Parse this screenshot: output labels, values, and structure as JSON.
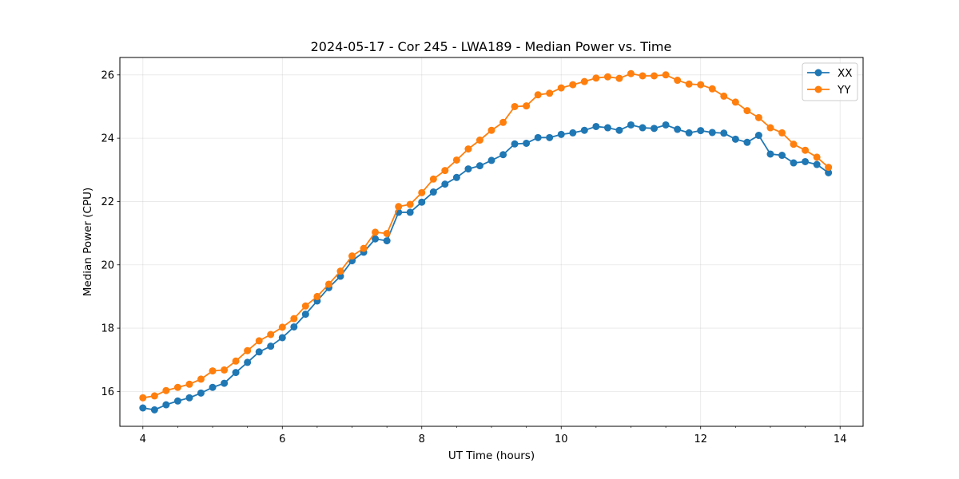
{
  "chart_data": {
    "type": "line",
    "title": "2024-05-17 - Cor 245 - LWA189 - Median Power vs. Time",
    "xlabel": "UT Time (hours)",
    "ylabel": "Median Power (CPU)",
    "xlim": [
      3.67,
      14.33
    ],
    "ylim": [
      14.9,
      26.55
    ],
    "xticks": [
      4,
      6,
      8,
      10,
      12,
      14
    ],
    "yticks": [
      16,
      18,
      20,
      22,
      24,
      26
    ],
    "x_minor_step": 0.5,
    "grid": true,
    "legend_position": "top-right",
    "x": [
      4.0,
      4.167,
      4.333,
      4.5,
      4.667,
      4.833,
      5.0,
      5.167,
      5.333,
      5.5,
      5.667,
      5.833,
      6.0,
      6.167,
      6.333,
      6.5,
      6.667,
      6.833,
      7.0,
      7.167,
      7.333,
      7.5,
      7.667,
      7.833,
      8.0,
      8.167,
      8.333,
      8.5,
      8.667,
      8.833,
      9.0,
      9.167,
      9.333,
      9.5,
      9.667,
      9.833,
      10.0,
      10.167,
      10.333,
      10.5,
      10.667,
      10.833,
      11.0,
      11.167,
      11.333,
      11.5,
      11.667,
      11.833,
      12.0,
      12.167,
      12.333,
      12.5,
      12.667,
      12.833,
      13.0,
      13.167,
      13.333,
      13.5,
      13.667,
      13.833
    ],
    "series": [
      {
        "name": "XX",
        "color": "#1f77b4",
        "values": [
          15.48,
          15.42,
          15.58,
          15.7,
          15.8,
          15.95,
          16.13,
          16.26,
          16.6,
          16.92,
          17.25,
          17.43,
          17.7,
          18.04,
          18.44,
          18.86,
          19.28,
          19.64,
          20.13,
          20.4,
          20.82,
          20.76,
          21.66,
          21.66,
          21.98,
          22.3,
          22.55,
          22.76,
          23.03,
          23.13,
          23.3,
          23.48,
          23.82,
          23.84,
          24.02,
          24.02,
          24.12,
          24.17,
          24.25,
          24.37,
          24.33,
          24.25,
          24.42,
          24.33,
          24.31,
          24.42,
          24.28,
          24.17,
          24.24,
          24.18,
          24.16,
          23.97,
          23.87,
          24.09,
          23.5,
          23.46,
          23.22,
          23.26,
          23.17,
          22.91
        ]
      },
      {
        "name": "YY",
        "color": "#ff7f0e",
        "values": [
          15.8,
          15.86,
          16.03,
          16.13,
          16.23,
          16.39,
          16.65,
          16.68,
          16.96,
          17.29,
          17.6,
          17.8,
          18.03,
          18.3,
          18.7,
          19.0,
          19.39,
          19.8,
          20.28,
          20.52,
          21.03,
          20.99,
          21.84,
          21.91,
          22.28,
          22.71,
          22.98,
          23.31,
          23.66,
          23.94,
          24.25,
          24.5,
          25.0,
          25.02,
          25.37,
          25.42,
          25.59,
          25.69,
          25.79,
          25.9,
          25.94,
          25.89,
          26.04,
          25.97,
          25.97,
          26.0,
          25.83,
          25.71,
          25.69,
          25.56,
          25.33,
          25.14,
          24.87,
          24.65,
          24.33,
          24.17,
          23.81,
          23.62,
          23.4,
          23.08
        ]
      }
    ]
  }
}
